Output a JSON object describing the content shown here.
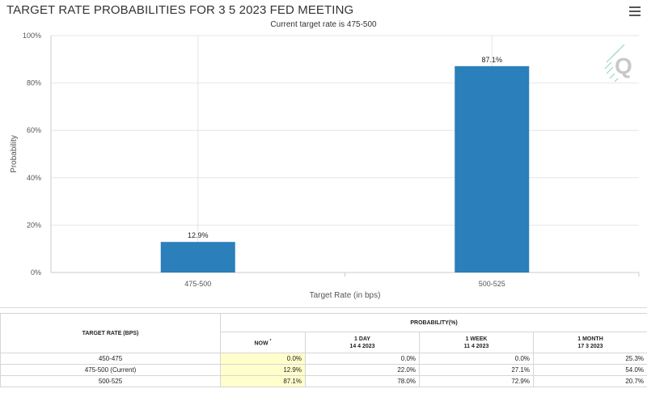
{
  "chart_data": {
    "type": "bar",
    "title": "TARGET RATE PROBABILITIES FOR 3 5 2023 FED MEETING",
    "subtitle": "Current target rate is 475-500",
    "xlabel": "Target Rate (in bps)",
    "ylabel": "Probability",
    "categories": [
      "475-500",
      "500-525"
    ],
    "values": [
      12.9,
      87.1
    ],
    "value_labels": [
      "12.9%",
      "87.1%"
    ],
    "ylim": [
      0,
      100
    ],
    "yticks": [
      "0%",
      "20%",
      "40%",
      "60%",
      "80%",
      "100%"
    ],
    "color": "#2b7fba",
    "grid": true
  },
  "table": {
    "col_header": "TARGET RATE (BPS)",
    "prob_header": "PROBABILITY(%)",
    "now_header": "NOW",
    "now_mark": "*",
    "periods": [
      {
        "label": "1 DAY",
        "date": "14 4 2023"
      },
      {
        "label": "1 WEEK",
        "date": "11 4 2023"
      },
      {
        "label": "1 MONTH",
        "date": "17 3 2023"
      }
    ],
    "rows": [
      {
        "name": "450-475",
        "now": "0.0%",
        "day": "0.0%",
        "week": "0.0%",
        "month": "25.3%"
      },
      {
        "name": "475-500 (Current)",
        "now": "12.9%",
        "day": "22.0%",
        "week": "27.1%",
        "month": "54.0%"
      },
      {
        "name": "500-525",
        "now": "87.1%",
        "day": "78.0%",
        "week": "72.9%",
        "month": "20.7%"
      }
    ]
  },
  "icons": {
    "menu": "hamburger-menu-icon",
    "logo": "q-logo"
  }
}
